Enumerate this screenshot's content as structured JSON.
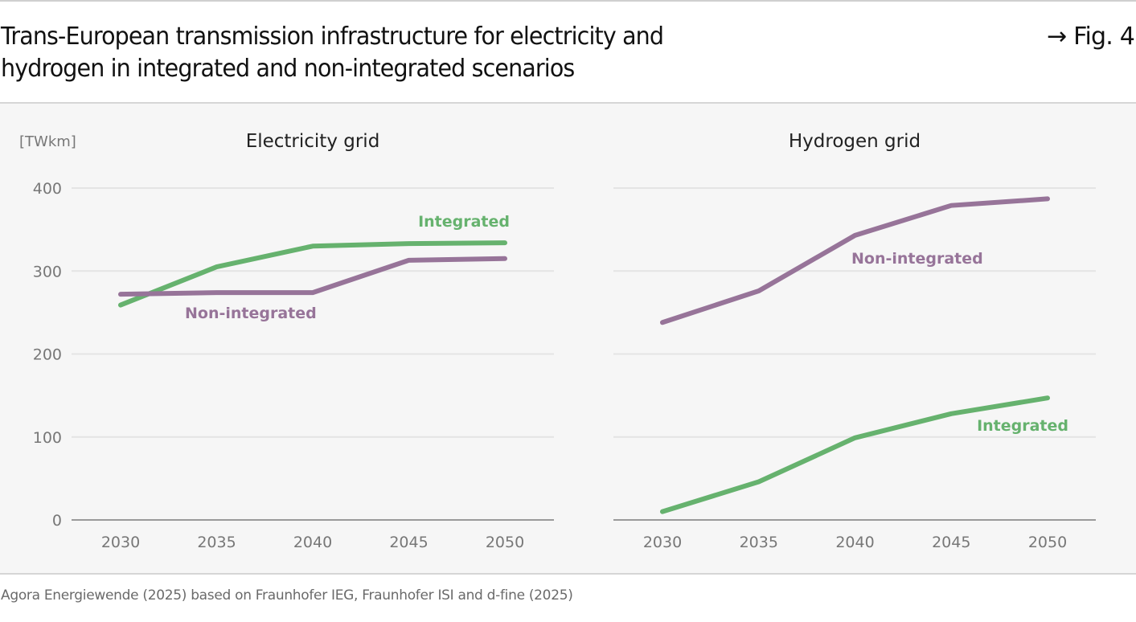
{
  "header": {
    "title_line1": "Trans-European transmission infrastructure for electricity and",
    "title_line2": "hydrogen in integrated and non-integrated scenarios",
    "fig_ref": "→ Fig. 4"
  },
  "footer": {
    "source": "Agora Energiewende (2025) based on Fraunhofer IEG, Fraunhofer ISI and d-fine (2025)"
  },
  "colors": {
    "integrated": "#66b26e",
    "non_integrated": "#977499",
    "grid": "#e4e4e4",
    "axis": "#9a9a9a"
  },
  "chart_data": [
    {
      "type": "line",
      "title": "Electricity grid",
      "ylabel": "[TWkm]",
      "xlabel": "",
      "x": [
        "2030",
        "2035",
        "2040",
        "2045",
        "2050"
      ],
      "ylim": [
        0,
        400
      ],
      "yticks": [
        0,
        100,
        200,
        300,
        400
      ],
      "grid": true,
      "series": [
        {
          "name": "Integrated",
          "values": [
            259,
            305,
            330,
            333,
            334
          ]
        },
        {
          "name": "Non-integrated",
          "values": [
            272,
            274,
            274,
            313,
            315
          ]
        }
      ]
    },
    {
      "type": "line",
      "title": "Hydrogen grid",
      "ylabel": "",
      "xlabel": "",
      "x": [
        "2030",
        "2035",
        "2040",
        "2045",
        "2050"
      ],
      "ylim": [
        0,
        400
      ],
      "yticks": [
        0,
        100,
        200,
        300,
        400
      ],
      "grid": true,
      "series": [
        {
          "name": "Integrated",
          "values": [
            10,
            46,
            99,
            128,
            147
          ]
        },
        {
          "name": "Non-integrated",
          "values": [
            238,
            276,
            343,
            379,
            387
          ]
        }
      ]
    }
  ]
}
